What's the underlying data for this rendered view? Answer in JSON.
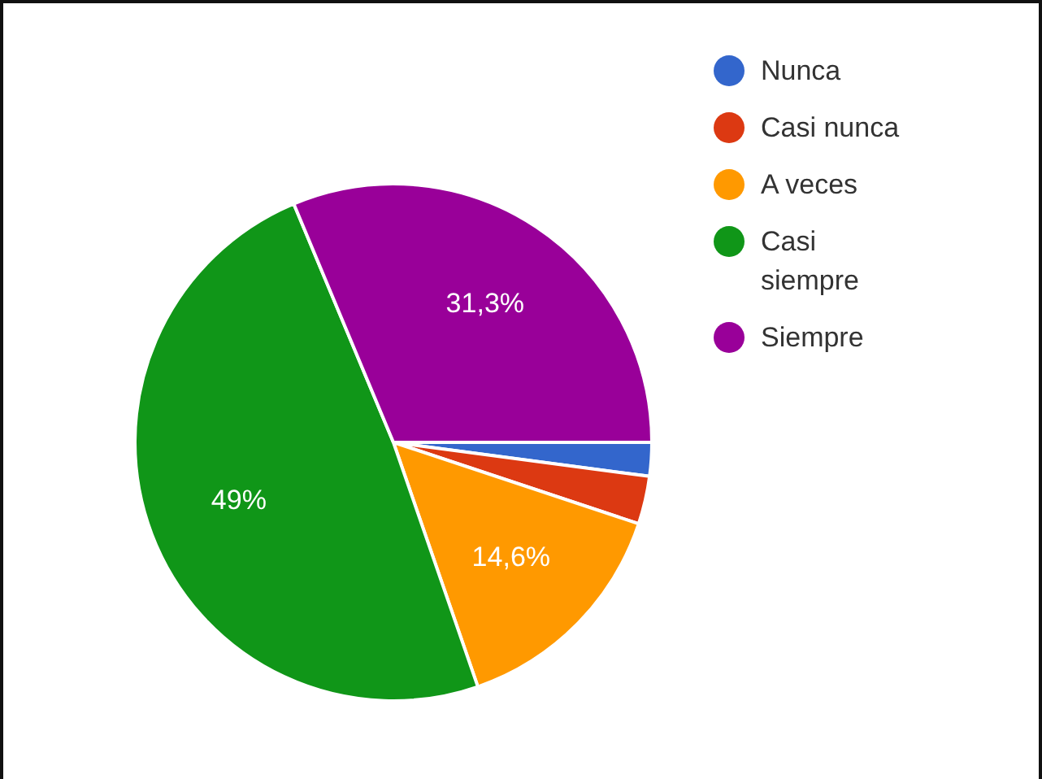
{
  "chart_data": {
    "type": "pie",
    "categories": [
      "Nunca",
      "Casi nunca",
      "A veces",
      "Casi siempre",
      "Siempre"
    ],
    "values": [
      2.1,
      3,
      14.6,
      49,
      31.3
    ],
    "colors": [
      "#3366cc",
      "#dc3912",
      "#ff9900",
      "#109618",
      "#990099"
    ],
    "value_labels": [
      null,
      null,
      "14,6%",
      "49%",
      "31,3%"
    ],
    "legend": "top right"
  }
}
